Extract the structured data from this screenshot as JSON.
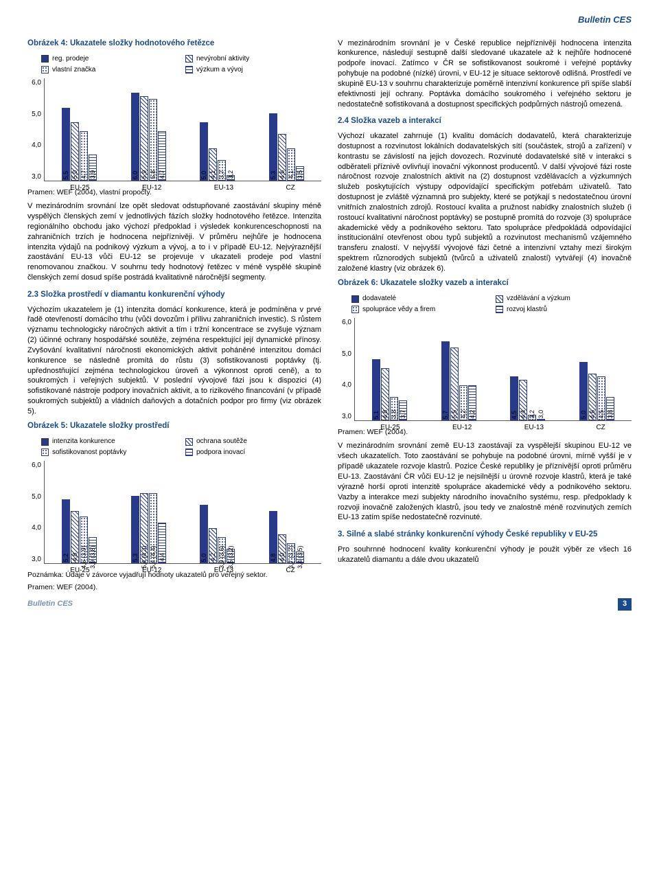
{
  "header": {
    "title": "Bulletin CES"
  },
  "footer": {
    "left": "Bulletin CES",
    "page": "3"
  },
  "colors": {
    "heading": "#1a4a8a",
    "bar_solid": "#2a3a8a",
    "text": "#000000",
    "background": "#ffffff"
  },
  "chart4": {
    "title": "Obrázek 4: Ukazatele složky hodnotového řetězce",
    "type": "bar",
    "legend": [
      {
        "label": "reg. prodeje",
        "fill": "solid"
      },
      {
        "label": "nevýrobní aktivity",
        "fill": "diag"
      },
      {
        "label": "vlastní značka",
        "fill": "dots"
      },
      {
        "label": "výzkum a vývoj",
        "fill": "hstripe"
      }
    ],
    "categories": [
      "EU-25",
      "EU-12",
      "EU-13",
      "CZ"
    ],
    "series": [
      {
        "name": "reg. prodeje",
        "fill": "solid",
        "values": [
          5.5,
          6.0,
          5.0,
          5.3
        ]
      },
      {
        "name": "nevýrobní aktivity",
        "fill": "diag",
        "values": [
          5.0,
          5.9,
          4.1,
          4.6
        ]
      },
      {
        "name": "vlastní značka",
        "fill": "dots",
        "values": [
          4.7,
          5.8,
          3.7,
          4.1
        ]
      },
      {
        "name": "výzkum a vývoj",
        "fill": "hstripe",
        "values": [
          3.9,
          4.7,
          3.2,
          3.5
        ]
      }
    ],
    "ylim": [
      3.0,
      6.5
    ],
    "yticks": [
      3.0,
      4.0,
      5.0,
      6.0
    ],
    "label_fmt": "one_decimal_comma",
    "title_fontsize": 11.5,
    "label_fontsize": 10,
    "tick_fontsize": 10
  },
  "chart5": {
    "title": "Obrázek 5: Ukazatele složky prostředí",
    "type": "bar",
    "legend": [
      {
        "label": "intenzita konkurence",
        "fill": "solid"
      },
      {
        "label": "ochrana soutěže",
        "fill": "diag"
      },
      {
        "label": "sofistikovanost poptávky",
        "fill": "dots"
      },
      {
        "label": "podpora inovací",
        "fill": "hstripe"
      }
    ],
    "categories": [
      "EU-25",
      "EU-12",
      "EU-13",
      "CZ"
    ],
    "series": [
      {
        "name": "intenzita konkurence",
        "fill": "solid",
        "values": [
          5.2,
          5.3,
          5.0,
          4.8
        ],
        "paren": [
          null,
          null,
          null,
          null
        ]
      },
      {
        "name": "ochrana soutěže",
        "fill": "diag",
        "values": [
          4.8,
          5.4,
          4.2,
          4.0
        ],
        "paren": [
          null,
          "4,3",
          null,
          null
        ]
      },
      {
        "name": "sofistikovanost poptávky",
        "fill": "dots",
        "values": [
          4.6,
          5.4,
          3.9,
          3.7
        ],
        "paren": [
          "3,9",
          "4,4",
          "3,6",
          "3,7"
        ]
      },
      {
        "name": "podpora inovací",
        "fill": "hstripe",
        "values": [
          3.9,
          4.4,
          3.5,
          3.4
        ],
        "paren": [
          "3,8",
          null,
          "3,2",
          "3,5"
        ]
      }
    ],
    "ylim": [
      3.0,
      6.5
    ],
    "yticks": [
      3.0,
      4.0,
      5.0,
      6.0
    ],
    "label_fmt": "one_decimal_comma_with_paren",
    "title_fontsize": 11.5,
    "label_fontsize": 10,
    "tick_fontsize": 10
  },
  "chart6": {
    "title": "Obrázek 6: Ukazatele složky vazeb a interakcí",
    "type": "bar",
    "legend": [
      {
        "label": "dodavatelé",
        "fill": "solid"
      },
      {
        "label": "vzdělávání a výzkum",
        "fill": "diag"
      },
      {
        "label": "spolupráce vědy a firem",
        "fill": "dots"
      },
      {
        "label": "rozvoj klastrů",
        "fill": "hstripe"
      }
    ],
    "categories": [
      "EU-25",
      "EU-12",
      "EU-13",
      "CZ"
    ],
    "series": [
      {
        "name": "dodavatelé",
        "fill": "solid",
        "values": [
          5.1,
          5.7,
          4.5,
          5.0
        ]
      },
      {
        "name": "vzdělávání a výzkum",
        "fill": "diag",
        "values": [
          4.8,
          5.5,
          4.4,
          4.6
        ]
      },
      {
        "name": "spolupráce vědy a firem",
        "fill": "dots",
        "values": [
          3.8,
          4.2,
          3.2,
          4.5
        ]
      },
      {
        "name": "rozvoj klastrů",
        "fill": "hstripe",
        "values": [
          3.7,
          4.2,
          3.0,
          3.8
        ]
      }
    ],
    "extra_labels": {
      "CZ": [
        "",
        "",
        "",
        "3,1"
      ]
    },
    "ylim": [
      3.0,
      6.5
    ],
    "yticks": [
      3.0,
      4.0,
      5.0,
      6.0
    ],
    "label_fmt": "one_decimal_comma",
    "title_fontsize": 11.5,
    "label_fontsize": 10,
    "tick_fontsize": 10
  },
  "text": {
    "source4": "Pramen: WEF (2004), vlastní propočty.",
    "para4": "V mezinárodním srovnání lze opět sledovat odstupňované zaostávání skupiny méně vyspělých členských zemí v jednotlivých fázích složky hodnotového řetězce. Intenzita regionálního obchodu jako výchozí předpoklad i výsledek konkurenceschopnosti na zahraničních trzích je hodnocena nejpříznivěji. V průměru nejhůře je hodnocena intenzita výdajů na podnikový výzkum a vývoj, a to i v případě EU-12. Nejvýraznější zaostávání EU-13 vůči EU-12 se projevuje v ukazateli prodeje pod vlastní renomovanou značkou. V souhrnu tedy hodnotový řetězec v méně vyspělé skupině členských zemí dosud spíše postrádá kvalitativně náročnější segmenty.",
    "sec23_title": "2.3 Složka prostředí v diamantu konkurenční výhody",
    "para23": "Výchozím ukazatelem je (1) intenzita domácí konkurence, která je podmíněna v prvé řadě otevřeností domácího trhu (vůči dovozům i přílivu zahraničních investic). S růstem významu technologicky náročných aktivit a tím i tržní koncentrace se zvyšuje význam (2) účinné ochrany hospodářské soutěže, zejména respektující její dynamické přínosy. Zvyšování kvalitativní náročnosti ekonomických aktivit poháněné intenzitou domácí konkurence se následně promítá do růstu (3) sofistikovanosti poptávky (tj. upřednostňující zejména technologickou úroveň a výkonnost oproti ceně), a to soukromých i veřejných subjektů. V poslední vývojové fázi jsou k dispozici (4) sofistikované nástroje podpory inovačních aktivit, a to rizikového financování (v případě soukromých subjektů) a vládních daňových a dotačních podpor pro firmy (viz obrázek 5).",
    "note5": "Poznámka: Údaje v závorce vyjadřují hodnoty ukazatelů pro veřejný sektor.",
    "source5": "Pramen: WEF (2004).",
    "para_r1": "V mezinárodním srovnání je v České republice nejpříznivěji hodnocena intenzita konkurence, následují sestupně další sledované ukazatele až k nejhůře hodnocené podpoře inovací. Zatímco v ČR se sofistikovanost soukromé i veřejné poptávky pohybuje na podobné (nízké) úrovni, v EU-12 je situace sektorově odlišná. Prostředí ve skupině EU-13 v souhrnu charakterizuje poměrně intenzivní konkurence při spíše slabší efektivnosti její ochrany. Poptávka domácího soukromého i veřejného sektoru je nedostatečně sofistikovaná a dostupnost specifických podpůrných nástrojů omezená.",
    "sec24_title": "2.4 Složka vazeb a interakcí",
    "para24": "Výchozí ukazatel zahrnuje (1) kvalitu domácích dodavatelů, která charakterizuje dostupnost a rozvinutost lokálních dodavatelských sítí (součástek, strojů a zařízení) v kontrastu se závislostí na jejich dovozech. Rozvinuté dodavatelské sítě v interakci s odběrateli příznivě ovlivňují inovační výkonnost producentů. V další vývojové fázi roste náročnost rozvoje znalostních aktivit na (2) dostupnost vzdělávacích a výzkumných služeb poskytujících výstupy odpovídající specifickým potřebám uživatelů. Tato dostupnost je zvláště významná pro subjekty, které se potýkají s nedostatečnou úrovní vnitřních znalostních zdrojů. Rostoucí kvalita a pružnost nabídky znalostních služeb (i rostoucí kvalitativní náročnost poptávky) se postupně promítá do rozvoje (3) spolupráce akademické vědy a podnikového sektoru. Tato spolupráce předpokládá odpovídající institucionální otevřenost obou typů subjektů a rozvinutost mechanismů vzájemného transferu znalostí. V nejvyšší vývojové fázi četné a intenzivní vztahy mezi širokým spektrem různorodých subjektů (tvůrců a uživatelů znalostí) vytvářejí (4) inovačně založené klastry (viz obrázek 6).",
    "source6": "Pramen: WEF (2004).",
    "para_r2": "V mezinárodním srovnání země EU-13 zaostávají za vyspělejší skupinou EU-12 ve všech ukazatelích. Toto zaostávání se pohybuje na podobné úrovni, mírně vyšší je v případě ukazatele rozvoje klastrů. Pozice České republiky je příznivější oproti průměru EU-13. Zaostávání ČR vůči EU-12 je nejsilnější u úrovně rozvoje klastrů, která je také výrazně horší oproti intenzitě spolupráce akademické vědy a podnikového sektoru. Vazby a interakce mezi subjekty národního inovačního systému, resp. předpoklady k rozvoji inovačně založených klastrů, jsou tedy ve znalostně méně rozvinutých zemích EU-13 zatím spíše nedostatečně rozvinuté.",
    "sec3_title": "3. Silné a slabé stránky konkurenční výhody České republiky v EU-25",
    "para3": "Pro souhrnné hodnocení kvality konkurenční výhody je použit výběr ze všech 16 ukazatelů diamantu a dále dvou ukazatelů"
  }
}
